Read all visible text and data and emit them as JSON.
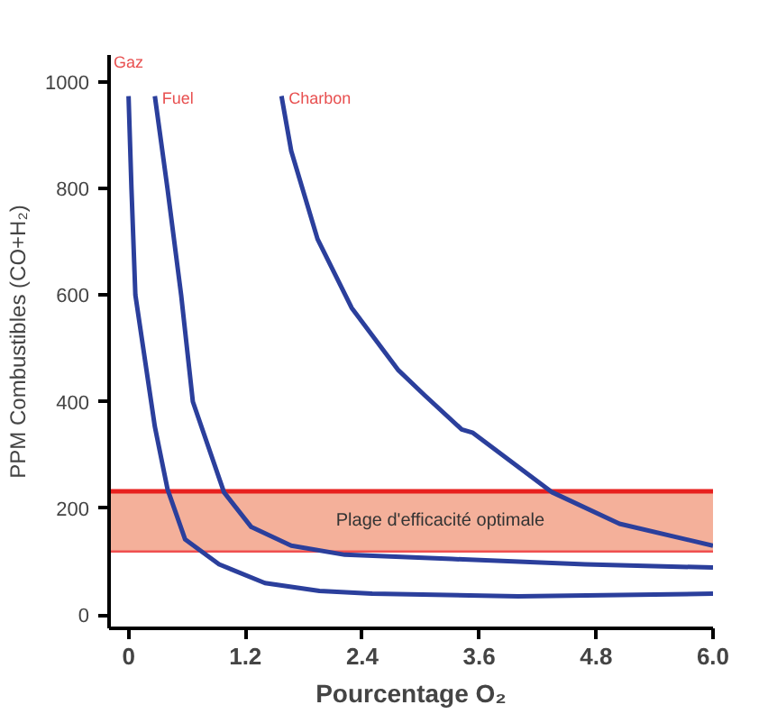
{
  "chart_data": {
    "type": "line",
    "xlabel": "Pourcentage O₂",
    "ylabel": "PPM Combustibles (CO+H₂)",
    "xlim": [
      -0.2,
      6.0
    ],
    "ylim": [
      -25,
      1050
    ],
    "xticks": [
      0,
      1.2,
      2.4,
      3.6,
      4.8,
      {
        "value": 6.0,
        "label": "6.0"
      }
    ],
    "yticks": [
      0,
      200,
      400,
      600,
      800,
      1000
    ],
    "grid": false,
    "marker": "none",
    "line_style": "solid",
    "bands": [
      {
        "axis": "y",
        "from": 119,
        "to": 232,
        "label": "Plage d'efficacité optimale",
        "color": "#f4b09a"
      }
    ],
    "ref_lines": [
      {
        "axis": "y",
        "value": 232,
        "color": "#e8201e"
      },
      {
        "axis": "y",
        "value": 119,
        "color": "#f05050"
      }
    ],
    "series": [
      {
        "name": "Gaz",
        "color": "#2b3f9c",
        "x": [
          0,
          0.03,
          0.07,
          0.27,
          0.4,
          0.58,
          0.93,
          1.4,
          1.96,
          2.5,
          4.0,
          6.0
        ],
        "values": [
          973,
          799,
          600,
          353,
          236,
          142,
          95,
          60,
          45,
          40,
          35,
          40
        ]
      },
      {
        "name": "Fuel",
        "color": "#2b3f9c",
        "x": [
          0.27,
          0.4,
          0.54,
          0.66,
          0.98,
          1.26,
          1.67,
          2.22,
          3.32,
          4.69,
          6.0
        ],
        "values": [
          973,
          799,
          600,
          400,
          230,
          165,
          130,
          113,
          105,
          95,
          89
        ]
      },
      {
        "name": "Charbon",
        "color": "#2b3f9c",
        "x": [
          1.57,
          1.67,
          1.94,
          2.29,
          2.77,
          3.04,
          3.42,
          3.53,
          4.35,
          5.04,
          6.0
        ],
        "values": [
          973,
          870,
          705,
          576,
          459,
          412,
          348,
          342,
          230,
          171,
          130
        ]
      }
    ]
  }
}
